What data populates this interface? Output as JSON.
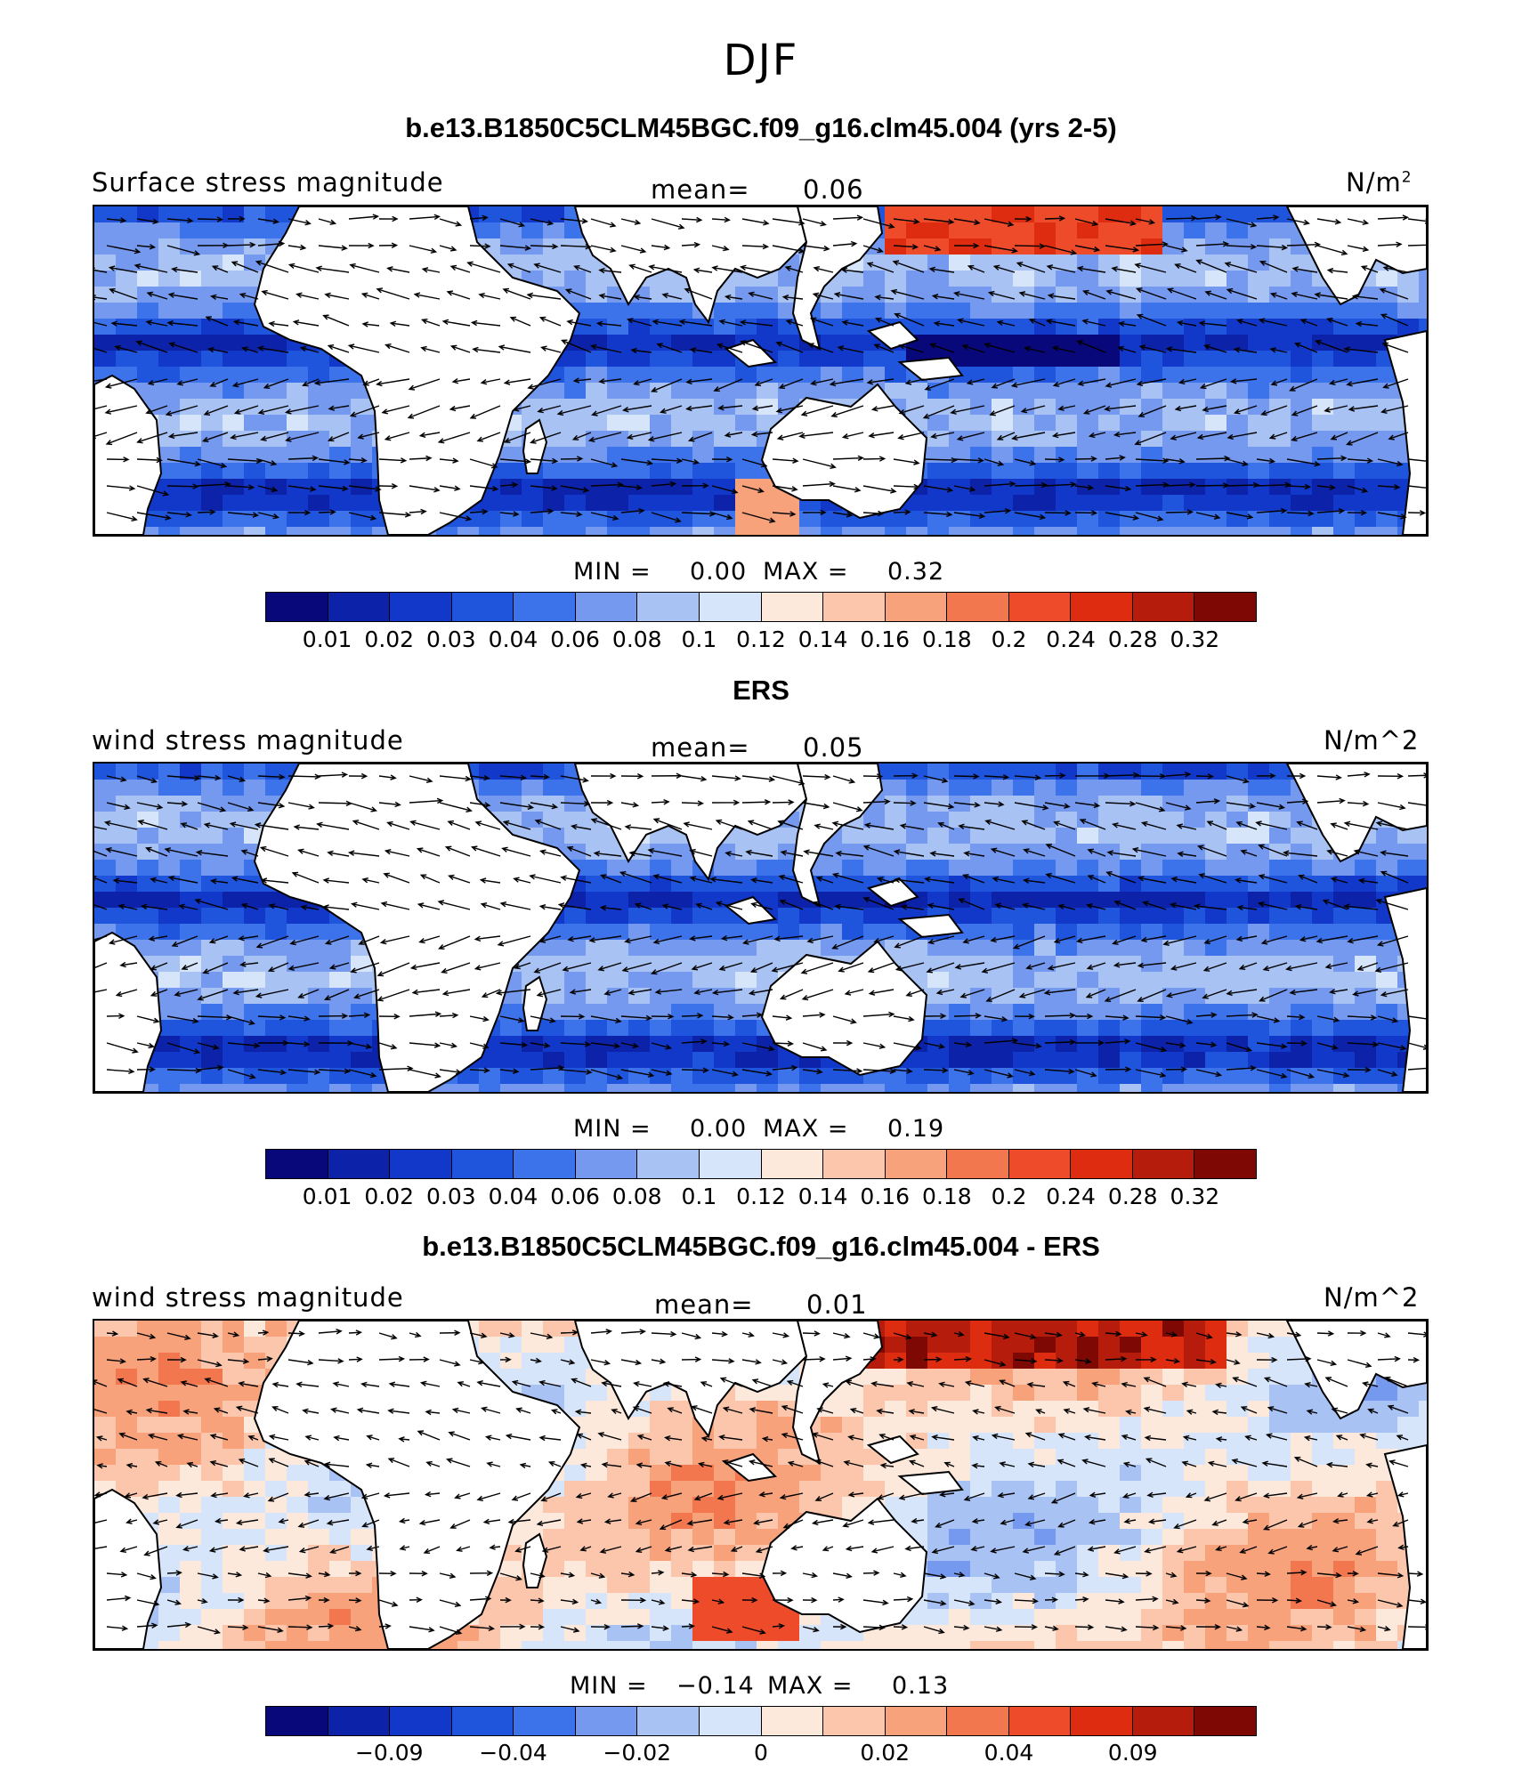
{
  "title": "DJF",
  "palette": [
    "#08087a",
    "#0c22a8",
    "#1138c8",
    "#1f55dc",
    "#3d73ea",
    "#7499ee",
    "#a8c2f4",
    "#d6e5fa",
    "#fde8dc",
    "#fbc6ac",
    "#f8a27c",
    "#f2764e",
    "#ee4b2a",
    "#de2c10",
    "#b51c0c",
    "#7e0804"
  ],
  "colors": {
    "land": "#ffffff",
    "coast": "#000000",
    "arrow": "#000000"
  },
  "panels": [
    {
      "title": "b.e13.B1850C5CLM45BGC.f09_g16.clm45.004 (yrs 2-5)",
      "left_label": "Surface stress magnitude",
      "mean_label": "mean=",
      "mean_value": "0.06",
      "units_base": "N/m",
      "units_sup": "2",
      "min_label": "MIN =",
      "min_value": "0.00",
      "max_label": "MAX =",
      "max_value": "0.32",
      "colorbar_ticks": [
        "0.01",
        "0.02",
        "0.03",
        "0.04",
        "0.06",
        "0.08",
        "0.1",
        "0.12",
        "0.14",
        "0.16",
        "0.18",
        "0.2",
        "0.24",
        "0.28",
        "0.32"
      ]
    },
    {
      "title": "ERS",
      "left_label": "wind stress magnitude",
      "mean_label": "mean=",
      "mean_value": "0.05",
      "units": "N/m^2",
      "min_label": "MIN =",
      "min_value": "0.00",
      "max_label": "MAX =",
      "max_value": "0.19",
      "colorbar_ticks": [
        "0.01",
        "0.02",
        "0.03",
        "0.04",
        "0.06",
        "0.08",
        "0.1",
        "0.12",
        "0.14",
        "0.16",
        "0.18",
        "0.2",
        "0.24",
        "0.28",
        "0.32"
      ]
    },
    {
      "title": "b.e13.B1850C5CLM45BGC.f09_g16.clm45.004 - ERS",
      "left_label": "wind stress magnitude",
      "mean_label": "mean=",
      "mean_value": "0.01",
      "units": "N/m^2",
      "min_label": "MIN =",
      "min_value": "−0.14",
      "max_label": "MAX =",
      "max_value": "0.13",
      "colorbar_ticks": [
        "−0.09",
        "−0.04",
        "−0.02",
        "0",
        "0.02",
        "0.04",
        "0.09"
      ]
    }
  ]
}
